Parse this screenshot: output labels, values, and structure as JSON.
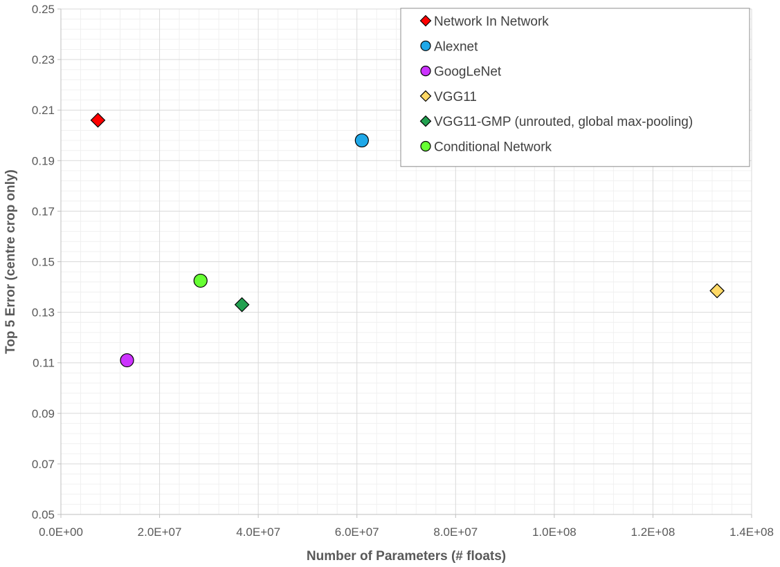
{
  "chart_data": {
    "type": "scatter",
    "title": "",
    "xlabel": "Number of Parameters (# floats)",
    "ylabel": "Top 5 Error (centre crop only)",
    "xlim": [
      0,
      140000000
    ],
    "ylim": [
      0.05,
      0.25
    ],
    "x_ticks": [
      0,
      20000000,
      40000000,
      60000000,
      80000000,
      100000000,
      120000000,
      140000000
    ],
    "x_tick_labels": [
      "0.0E+00",
      "2.0E+07",
      "4.0E+07",
      "6.0E+07",
      "8.0E+07",
      "1.0E+08",
      "1.2E+08",
      "1.4E+08"
    ],
    "y_ticks": [
      0.05,
      0.07,
      0.09,
      0.11,
      0.13,
      0.15,
      0.17,
      0.19,
      0.21,
      0.23,
      0.25
    ],
    "y_tick_labels": [
      "0.05",
      "0.07",
      "0.09",
      "0.11",
      "0.13",
      "0.15",
      "0.17",
      "0.19",
      "0.21",
      "0.23",
      "0.25"
    ],
    "grid": true,
    "minor_grid": true,
    "legend_position": "top-right",
    "series": [
      {
        "name": "Network In Network",
        "marker": "diamond",
        "color": "#ff0000",
        "points": [
          {
            "x": 7500000,
            "y": 0.206
          }
        ]
      },
      {
        "name": "Alexnet",
        "marker": "circle",
        "color": "#1fa8e8",
        "points": [
          {
            "x": 61000000,
            "y": 0.198
          }
        ]
      },
      {
        "name": "GoogLeNet",
        "marker": "circle",
        "color": "#cc33ff",
        "points": [
          {
            "x": 13400000,
            "y": 0.111
          }
        ]
      },
      {
        "name": "VGG11",
        "marker": "diamond",
        "color": "#ffd966",
        "points": [
          {
            "x": 133000000,
            "y": 0.1385
          }
        ]
      },
      {
        "name": "VGG11-GMP (unrouted, global max-pooling)",
        "marker": "diamond",
        "color": "#22a050",
        "points": [
          {
            "x": 36700000,
            "y": 0.133
          }
        ]
      },
      {
        "name": "Conditional Network",
        "marker": "circle",
        "color": "#66ff33",
        "points": [
          {
            "x": 28300000,
            "y": 0.1425
          }
        ]
      }
    ]
  }
}
